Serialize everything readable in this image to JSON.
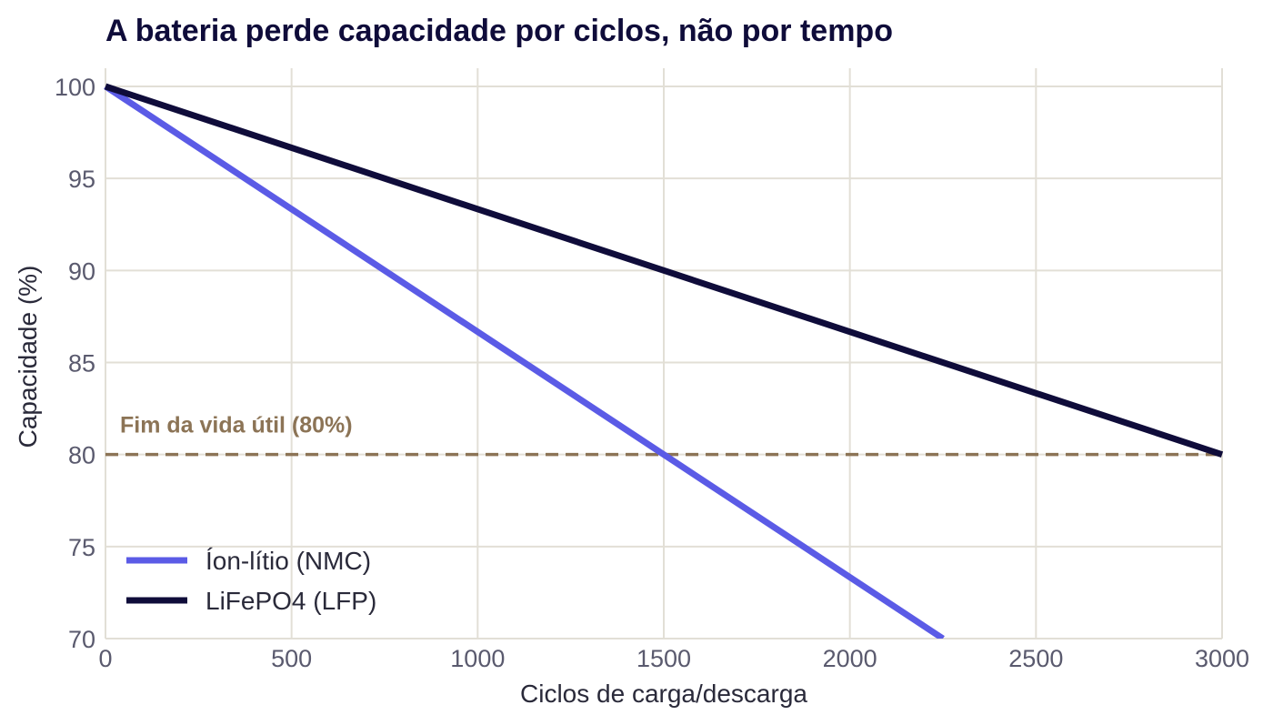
{
  "chart_data": {
    "type": "line",
    "title": "A bateria perde capacidade por ciclos, não por tempo",
    "xlabel": "Ciclos de carga/descarga",
    "ylabel": "Capacidade (%)",
    "xlim": [
      0,
      3000
    ],
    "ylim": [
      70,
      100
    ],
    "xticks": [
      "0",
      "500",
      "1000",
      "1500",
      "2000",
      "2500",
      "3000"
    ],
    "yticks": [
      "70",
      "75",
      "80",
      "85",
      "90",
      "95",
      "100"
    ],
    "grid": true,
    "legend_position": "bottom-left",
    "series": [
      {
        "name": "Íon-lítio (NMC)",
        "color": "#5b5be6",
        "x": [
          0,
          1500,
          2250
        ],
        "y": [
          100,
          80,
          70
        ]
      },
      {
        "name": "LiFePO4 (LFP)",
        "color": "#0f0c3a",
        "x": [
          0,
          1500,
          3000
        ],
        "y": [
          100,
          90,
          80
        ]
      }
    ],
    "reference_line": {
      "y": 80,
      "label": "Fim da vida útil (80%)",
      "color": "#8c7456",
      "style": "dashed"
    }
  }
}
